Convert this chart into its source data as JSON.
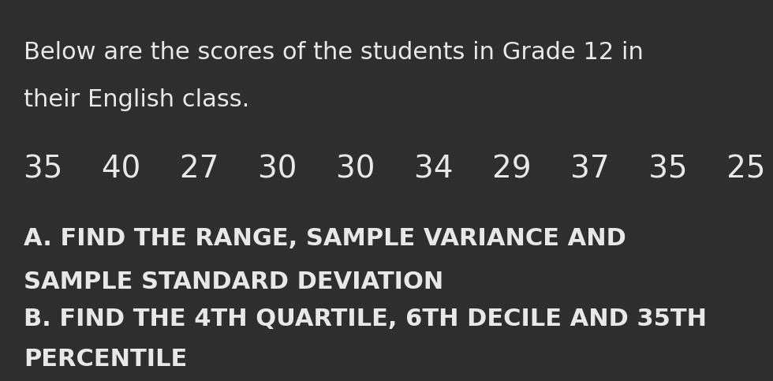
{
  "background_color": "#2e2e2e",
  "text_color": "#e8e8e8",
  "line1": "Below are the scores of the students in Grade 12 in",
  "line2": "their English class.",
  "scores": "35    40    27    30    30    34    29    37    35    25",
  "part_a_line1": "A. FIND THE RANGE, SAMPLE VARIANCE AND",
  "part_a_line2": "SAMPLE STANDARD DEVIATION",
  "part_b_line1": "B. FIND THE 4TH QUARTILE, 6TH DECILE AND 35TH",
  "part_b_line2": "PERCENTILE",
  "font_size_intro": 22,
  "font_size_scores": 28,
  "font_size_parts": 22
}
